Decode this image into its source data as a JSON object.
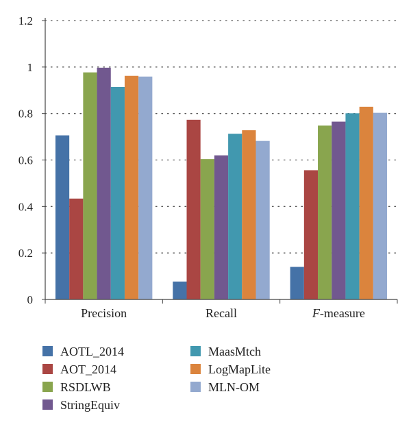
{
  "chart_data": {
    "type": "bar",
    "categories": [
      "Precision",
      "Recall",
      "F-measure"
    ],
    "series": [
      {
        "name": "AOTL_2014",
        "color": "#4572A7",
        "values": [
          0.706,
          0.077,
          0.14
        ]
      },
      {
        "name": "AOT_2014",
        "color": "#AA4643",
        "values": [
          0.434,
          0.773,
          0.556
        ]
      },
      {
        "name": "RSDLWB",
        "color": "#89A54E",
        "values": [
          0.977,
          0.604,
          0.748
        ]
      },
      {
        "name": "StringEquiv",
        "color": "#71588F",
        "values": [
          0.997,
          0.62,
          0.765
        ]
      },
      {
        "name": "MaasMtch",
        "color": "#4198AF",
        "values": [
          0.914,
          0.713,
          0.801
        ]
      },
      {
        "name": "LogMapLite",
        "color": "#DB843D",
        "values": [
          0.962,
          0.728,
          0.829
        ]
      },
      {
        "name": "MLN-OM",
        "color": "#93A9CF",
        "values": [
          0.959,
          0.682,
          0.803
        ]
      }
    ],
    "ylim": [
      0,
      1.2
    ],
    "yticks": [
      "0",
      "0.2",
      "0.4",
      "0.6",
      "0.8",
      "1",
      "1.2"
    ],
    "grid": "horizontal dotted",
    "legend_position": "bottom"
  }
}
